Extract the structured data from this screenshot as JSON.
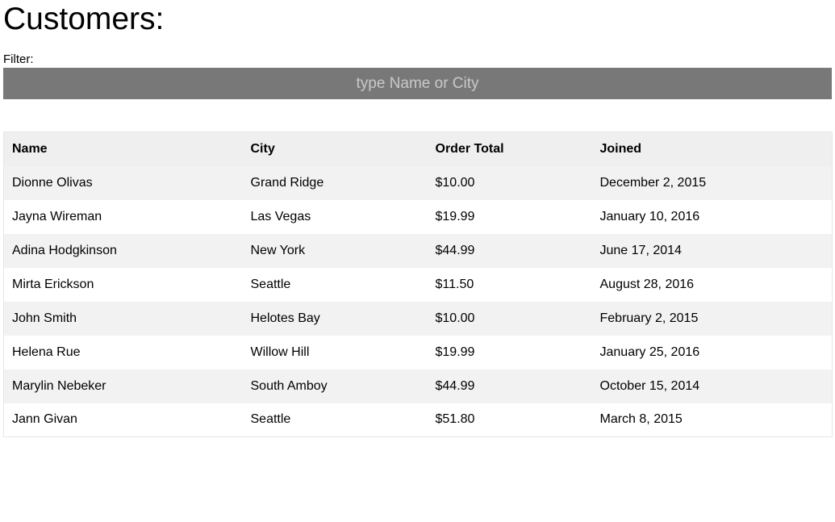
{
  "heading": "Customers:",
  "filter": {
    "label": "Filter:",
    "placeholder": "type Name or City",
    "value": ""
  },
  "table": {
    "columns": [
      "Name",
      "City",
      "Order Total",
      "Joined"
    ],
    "rows": [
      [
        "Dionne Olivas",
        "Grand Ridge",
        "$10.00",
        "December 2, 2015"
      ],
      [
        "Jayna Wireman",
        "Las Vegas",
        "$19.99",
        "January 10, 2016"
      ],
      [
        "Adina Hodgkinson",
        "New York",
        "$44.99",
        "June 17, 2014"
      ],
      [
        "Mirta Erickson",
        "Seattle",
        "$11.50",
        "August 28, 2016"
      ],
      [
        "John Smith",
        "Helotes Bay",
        "$10.00",
        "February 2, 2015"
      ],
      [
        "Helena Rue",
        "Willow Hill",
        "$19.99",
        "January 25, 2016"
      ],
      [
        "Marylin Nebeker",
        "South Amboy",
        "$44.99",
        "October 15, 2014"
      ],
      [
        "Jann Givan",
        "Seattle",
        "$51.80",
        "March 8, 2015"
      ]
    ]
  },
  "colors": {
    "filter_background": "#787878",
    "filter_placeholder": "#c9c9c9",
    "header_row": "#efefef",
    "stripe_row": "#f2f2f2"
  }
}
